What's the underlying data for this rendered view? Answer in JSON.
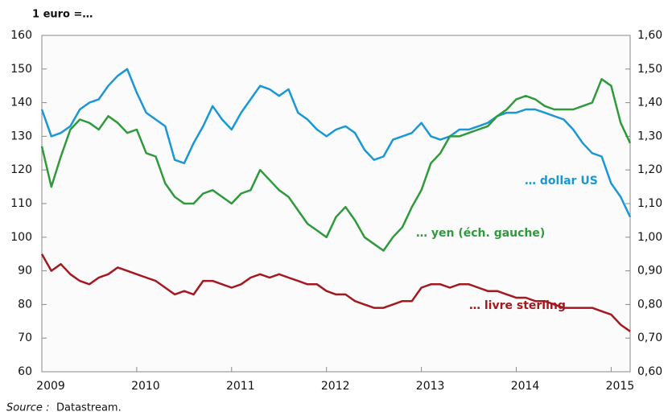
{
  "chart_data": {
    "type": "line",
    "title": "1 euro =…",
    "source_label": "Source :",
    "source": "Datastream.",
    "x": [
      2009.0,
      2009.1,
      2009.2,
      2009.3,
      2009.4,
      2009.5,
      2009.6,
      2009.7,
      2009.8,
      2009.9,
      2010.0,
      2010.1,
      2010.2,
      2010.3,
      2010.4,
      2010.5,
      2010.6,
      2010.7,
      2010.8,
      2010.9,
      2011.0,
      2011.1,
      2011.2,
      2011.3,
      2011.4,
      2011.5,
      2011.6,
      2011.7,
      2011.8,
      2011.9,
      2012.0,
      2012.1,
      2012.2,
      2012.3,
      2012.4,
      2012.5,
      2012.6,
      2012.7,
      2012.8,
      2012.9,
      2013.0,
      2013.1,
      2013.2,
      2013.3,
      2013.4,
      2013.5,
      2013.6,
      2013.7,
      2013.8,
      2013.9,
      2014.0,
      2014.1,
      2014.2,
      2014.3,
      2014.4,
      2014.5,
      2014.6,
      2014.7,
      2014.8,
      2014.9,
      2015.0,
      2015.1,
      2015.2
    ],
    "xlim": [
      2009,
      2015.2
    ],
    "xticks": [
      2009,
      2010,
      2011,
      2012,
      2013,
      2014,
      2015
    ],
    "ylim": [
      60,
      160
    ],
    "yticks": [
      60,
      70,
      80,
      90,
      100,
      110,
      120,
      130,
      140,
      150,
      160
    ],
    "y2lim": [
      0.6,
      1.6
    ],
    "y2ticks": [
      {
        "value": 0.6,
        "label": "0,60"
      },
      {
        "value": 0.7,
        "label": "0,70"
      },
      {
        "value": 0.8,
        "label": "0,80"
      },
      {
        "value": 0.9,
        "label": "0,90"
      },
      {
        "value": 1.0,
        "label": "1,00"
      },
      {
        "value": 1.1,
        "label": "1,10"
      },
      {
        "value": 1.2,
        "label": "1,20"
      },
      {
        "value": 1.3,
        "label": "1,30"
      },
      {
        "value": 1.4,
        "label": "1,40"
      },
      {
        "value": 1.5,
        "label": "1,50"
      },
      {
        "value": 1.6,
        "label": "1,60"
      }
    ],
    "series": [
      {
        "name": "… dollar US",
        "color": "#1a97d5",
        "axis": "y2",
        "values": [
          1.38,
          1.3,
          1.31,
          1.33,
          1.38,
          1.4,
          1.41,
          1.45,
          1.48,
          1.5,
          1.43,
          1.37,
          1.35,
          1.33,
          1.23,
          1.22,
          1.28,
          1.33,
          1.39,
          1.35,
          1.32,
          1.37,
          1.41,
          1.45,
          1.44,
          1.42,
          1.44,
          1.37,
          1.35,
          1.32,
          1.3,
          1.32,
          1.33,
          1.31,
          1.26,
          1.23,
          1.24,
          1.29,
          1.3,
          1.31,
          1.34,
          1.3,
          1.29,
          1.3,
          1.32,
          1.32,
          1.33,
          1.34,
          1.36,
          1.37,
          1.37,
          1.38,
          1.38,
          1.37,
          1.36,
          1.35,
          1.32,
          1.28,
          1.25,
          1.24,
          1.16,
          1.12,
          1.06
        ]
      },
      {
        "name": "… yen (éch. gauche)",
        "color": "#2f9a3c",
        "values": [
          127,
          115,
          124,
          132,
          135,
          134,
          132,
          136,
          134,
          131,
          132,
          125,
          124,
          116,
          112,
          110,
          110,
          113,
          114,
          112,
          110,
          113,
          114,
          120,
          117,
          114,
          112,
          108,
          104,
          102,
          100,
          106,
          109,
          105,
          100,
          98,
          96,
          100,
          103,
          109,
          114,
          122,
          125,
          130,
          130,
          131,
          132,
          133,
          136,
          138,
          141,
          142,
          141,
          139,
          138,
          138,
          138,
          139,
          140,
          147,
          145,
          134,
          128
        ]
      },
      {
        "name": "… livre sterling",
        "color": "#a3191f",
        "axis": "y2",
        "values": [
          0.95,
          0.9,
          0.92,
          0.89,
          0.87,
          0.86,
          0.88,
          0.89,
          0.91,
          0.9,
          0.89,
          0.88,
          0.87,
          0.85,
          0.83,
          0.84,
          0.83,
          0.87,
          0.87,
          0.86,
          0.85,
          0.86,
          0.88,
          0.89,
          0.88,
          0.89,
          0.88,
          0.87,
          0.86,
          0.86,
          0.84,
          0.83,
          0.83,
          0.81,
          0.8,
          0.79,
          0.79,
          0.8,
          0.81,
          0.81,
          0.85,
          0.86,
          0.86,
          0.85,
          0.86,
          0.86,
          0.85,
          0.84,
          0.84,
          0.83,
          0.82,
          0.82,
          0.81,
          0.81,
          0.8,
          0.79,
          0.79,
          0.79,
          0.79,
          0.78,
          0.77,
          0.74,
          0.72
        ]
      }
    ]
  }
}
